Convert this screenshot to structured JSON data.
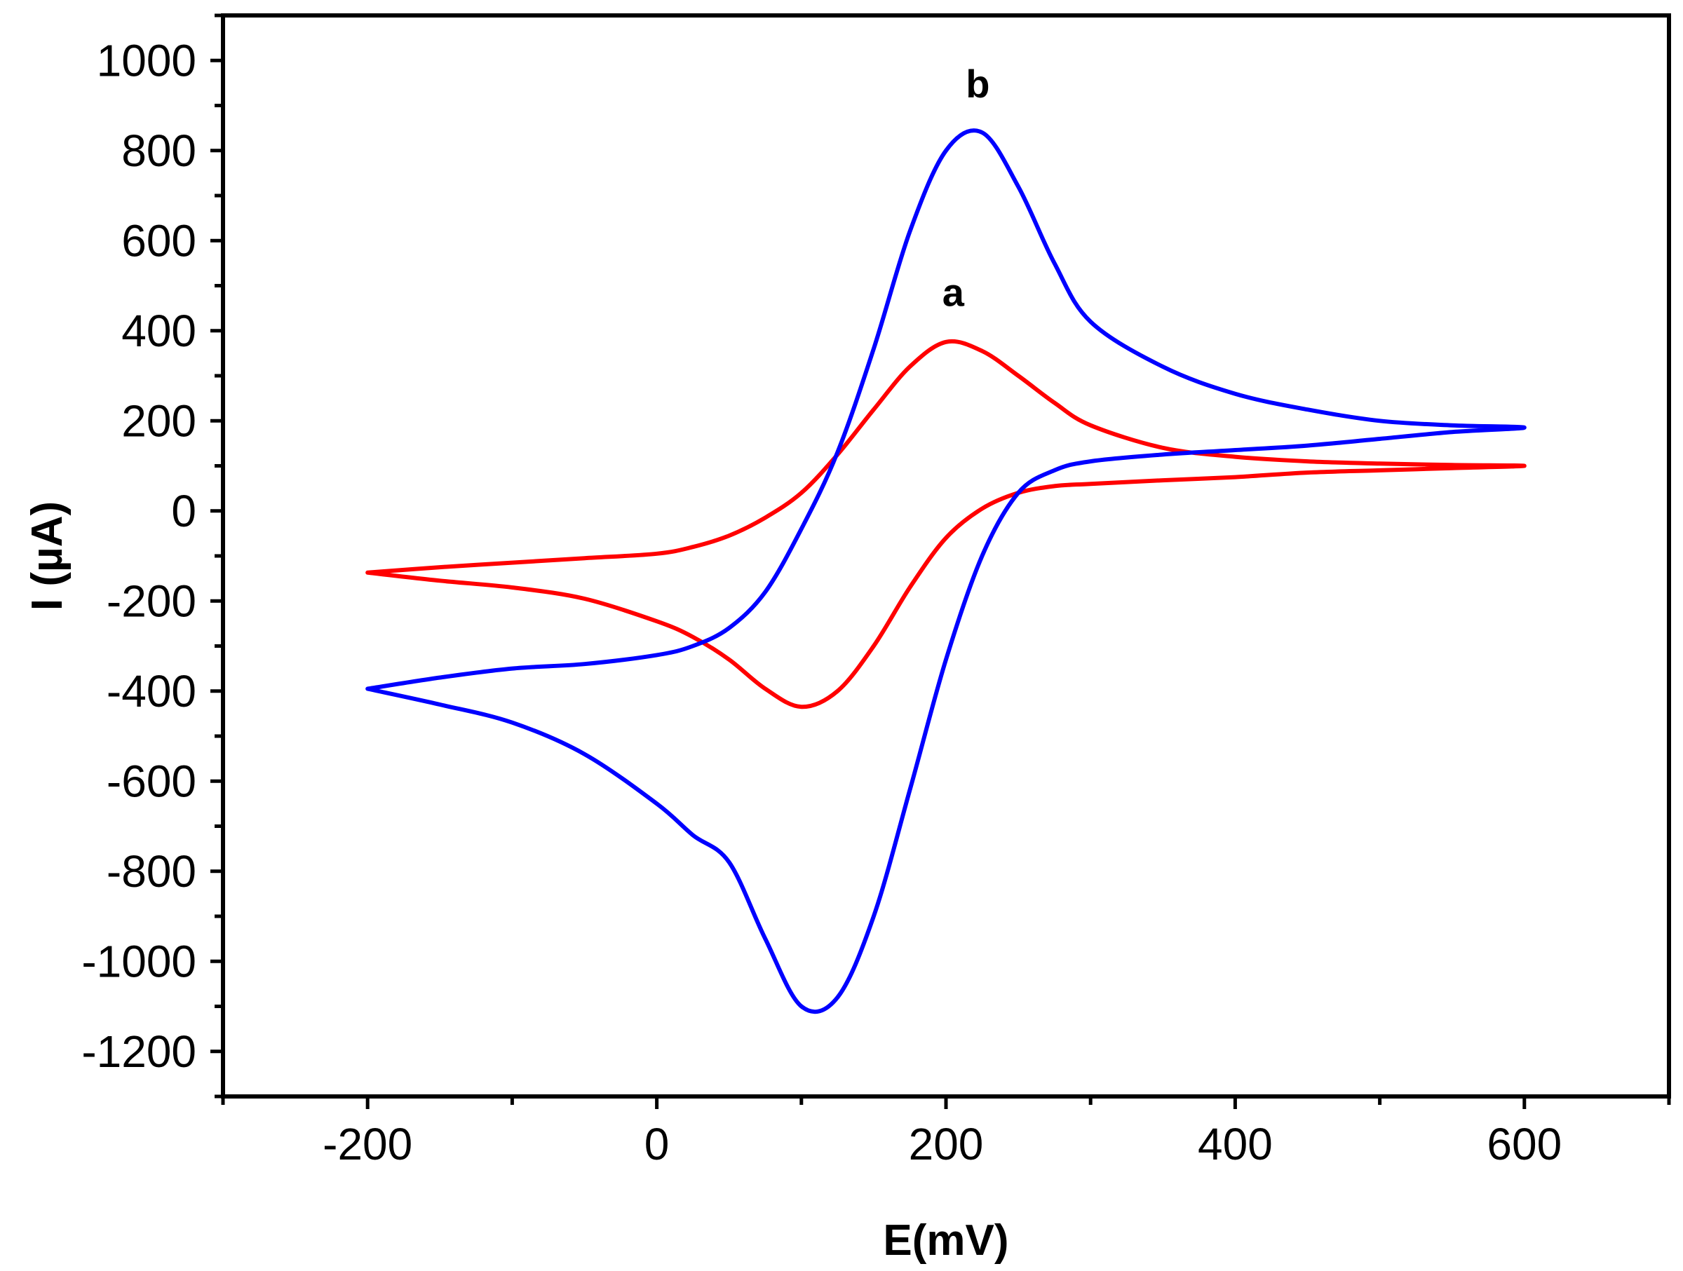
{
  "chart_data": {
    "type": "line",
    "title": "",
    "xlabel": "E(mV)",
    "ylabel": "I (µA)",
    "xlim": [
      -300,
      700
    ],
    "ylim": [
      -1300,
      1100
    ],
    "x_ticks": [
      -200,
      0,
      200,
      400,
      600
    ],
    "y_ticks": [
      1000,
      800,
      600,
      400,
      200,
      0,
      -200,
      -400,
      -600,
      -800,
      -1000,
      -1200
    ],
    "x_tick_labels": [
      "-200",
      "0",
      "200",
      "400",
      "600"
    ],
    "y_tick_labels": [
      "1000",
      "800",
      "600",
      "400",
      "200",
      "0",
      "-200",
      "-400",
      "-600",
      "-800",
      "-1000",
      "-1200"
    ],
    "grid": false,
    "series": [
      {
        "name": "a",
        "color": "#ff0000",
        "x": [
          -200,
          -150,
          -100,
          -50,
          0,
          25,
          50,
          75,
          100,
          125,
          150,
          175,
          200,
          225,
          250,
          275,
          300,
          350,
          400,
          450,
          500,
          550,
          600,
          550,
          500,
          450,
          400,
          350,
          300,
          275,
          250,
          225,
          200,
          175,
          150,
          125,
          100,
          75,
          50,
          25,
          0,
          -50,
          -100,
          -150,
          -200
        ],
        "y": [
          -137,
          -125,
          -115,
          -105,
          -95,
          -80,
          -55,
          -15,
          40,
          125,
          225,
          320,
          375,
          355,
          300,
          240,
          190,
          140,
          120,
          110,
          105,
          102,
          100,
          95,
          90,
          85,
          75,
          68,
          60,
          55,
          40,
          5,
          -60,
          -170,
          -300,
          -400,
          -435,
          -395,
          -330,
          -280,
          -245,
          -195,
          -170,
          -155,
          -137
        ]
      },
      {
        "name": "b",
        "color": "#0000ff",
        "x": [
          -200,
          -150,
          -100,
          -50,
          0,
          25,
          50,
          75,
          100,
          125,
          150,
          175,
          200,
          225,
          250,
          275,
          300,
          350,
          400,
          450,
          500,
          550,
          600,
          550,
          500,
          450,
          400,
          350,
          300,
          275,
          250,
          225,
          200,
          175,
          150,
          125,
          100,
          75,
          50,
          25,
          0,
          -50,
          -100,
          -150,
          -200
        ],
        "y": [
          -395,
          -370,
          -350,
          -340,
          -320,
          -300,
          -260,
          -180,
          -40,
          130,
          360,
          620,
          800,
          840,
          720,
          550,
          420,
          320,
          260,
          225,
          200,
          190,
          185,
          175,
          160,
          145,
          135,
          125,
          110,
          90,
          40,
          -100,
          -330,
          -620,
          -900,
          -1080,
          -1100,
          -950,
          -780,
          -720,
          -650,
          -540,
          -470,
          -430,
          -395
        ]
      }
    ],
    "annotations": [
      {
        "text": "a",
        "x": 205,
        "y": 455
      },
      {
        "text": "b",
        "x": 222,
        "y": 918
      }
    ]
  }
}
